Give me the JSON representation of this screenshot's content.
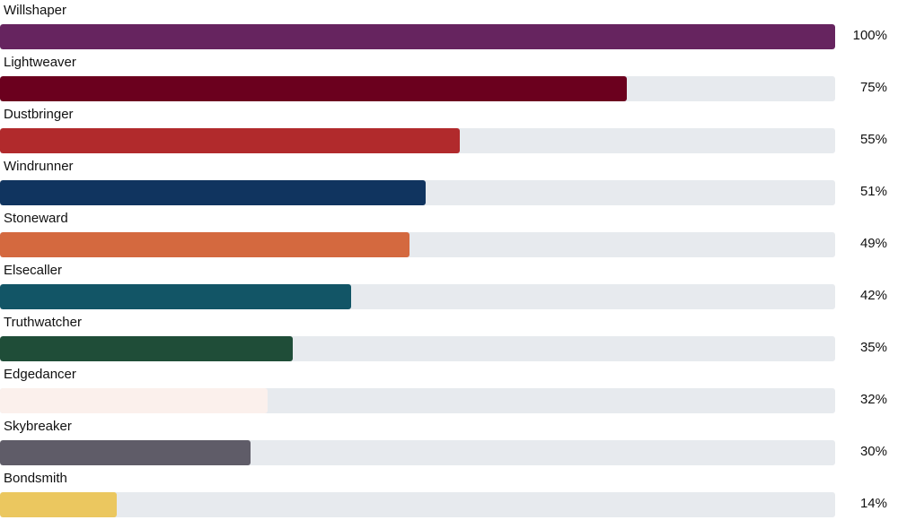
{
  "chart_data": {
    "type": "bar",
    "orientation": "horizontal",
    "categories": [
      "Willshaper",
      "Lightweaver",
      "Dustbringer",
      "Windrunner",
      "Stoneward",
      "Elsecaller",
      "Truthwatcher",
      "Edgedancer",
      "Skybreaker",
      "Bondsmith"
    ],
    "values": [
      100,
      75,
      55,
      51,
      49,
      42,
      35,
      32,
      30,
      14
    ],
    "value_labels": [
      "100%",
      "75%",
      "55%",
      "51%",
      "49%",
      "42%",
      "35%",
      "32%",
      "30%",
      "14%"
    ],
    "colors": [
      "#66245f",
      "#6b001e",
      "#b12a2c",
      "#10345f",
      "#d4693f",
      "#125566",
      "#1f4d38",
      "#fbf0ec",
      "#5f5c68",
      "#ebc75f"
    ],
    "track_color": "#e7eaee",
    "xlim": [
      0,
      100
    ],
    "grid": false,
    "legend": false
  }
}
